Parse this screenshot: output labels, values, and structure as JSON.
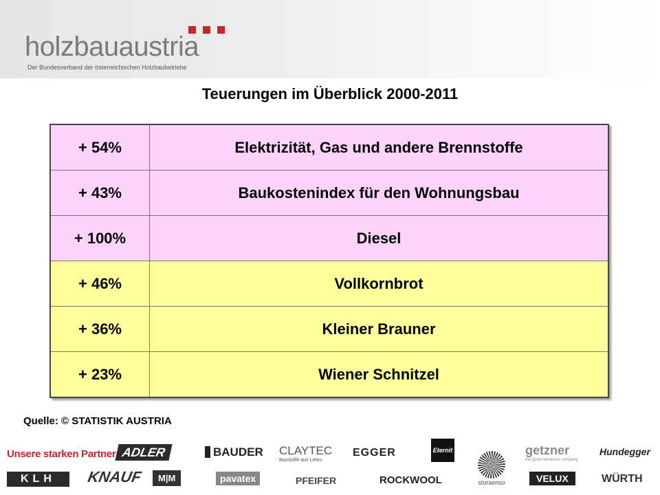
{
  "header": {
    "brand": "holzbauaustria",
    "tagline": "Der Bundesverband der österreichischen Holzbaubetriebe"
  },
  "title": "Teuerungen im Überblick 2000-2011",
  "table": {
    "rows": [
      {
        "change": "+ 54%",
        "item": "Elektrizität, Gas und andere Brennstoffe",
        "color": "#fbd3fb"
      },
      {
        "change": "+ 43%",
        "item": "Baukostenindex für den Wohnungsbau",
        "color": "#fbd3fb"
      },
      {
        "change": "+ 100%",
        "item": "Diesel",
        "color": "#fbd3fb"
      },
      {
        "change": "+ 46%",
        "item": "Vollkornbrot",
        "color": "#ffff9c"
      },
      {
        "change": "+ 36%",
        "item": "Kleiner Brauner",
        "color": "#ffff9c"
      },
      {
        "change": "+ 23%",
        "item": "Wiener Schnitzel",
        "color": "#ffff9c"
      }
    ]
  },
  "source": "Quelle: © STATISTIK AUSTRIA",
  "partners": {
    "label": "Unsere starken Partner",
    "logos": [
      "ADLER",
      "BAUDER",
      "CLAYTEC",
      "Baustoffe aus Lehm.",
      "EGGER",
      "Eternit",
      "getzner",
      "the good vibrations company",
      "Hundegger",
      "KLH",
      "KNAUF",
      "M|M",
      "pavatex",
      "PFEIFER",
      "ROCKWOOL",
      "storaenso",
      "VELUX",
      "WÜRTH"
    ]
  },
  "colors": {
    "accent": "#c0282d",
    "pink_row": "#fbd3fb",
    "yellow_row": "#ffff9c"
  }
}
